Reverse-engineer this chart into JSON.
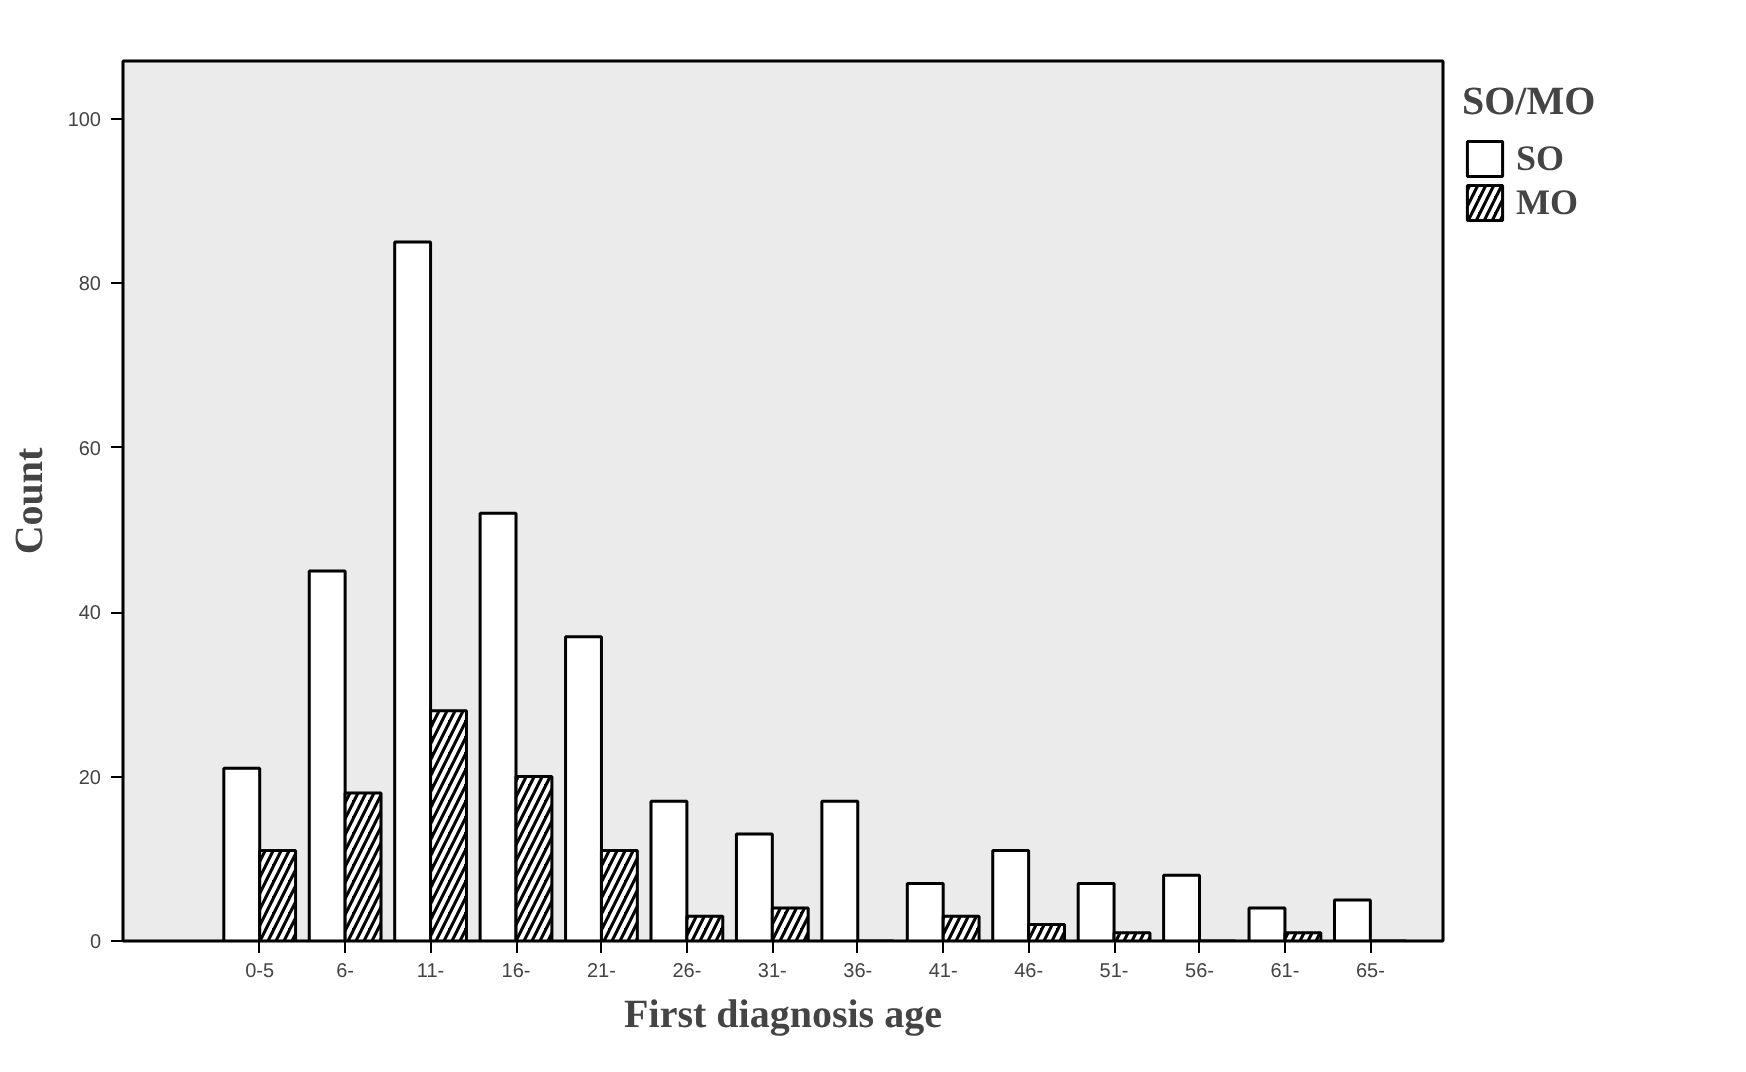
{
  "chart_data": {
    "type": "bar",
    "xlabel": "First diagnosis age",
    "ylabel": "Count",
    "legend_title": "SO/MO",
    "categories": [
      "0-5",
      "6-",
      "11-",
      "16-",
      "21-",
      "26-",
      "31-",
      "36-",
      "41-",
      "46-",
      "51-",
      "56-",
      "61-",
      "65-"
    ],
    "series": [
      {
        "name": "SO",
        "color": "#ffffff",
        "values": [
          21,
          45,
          85,
          52,
          37,
          17,
          13,
          17,
          7,
          11,
          7,
          8,
          4,
          5
        ]
      },
      {
        "name": "MO",
        "color": "#000000",
        "values": [
          11,
          18,
          28,
          20,
          11,
          3,
          4,
          0,
          3,
          2,
          1,
          0,
          1,
          0
        ]
      }
    ],
    "ylim": [
      0,
      107
    ],
    "yticks": [
      0,
      20,
      40,
      60,
      80,
      100
    ],
    "grid": false,
    "legend": "top right"
  }
}
